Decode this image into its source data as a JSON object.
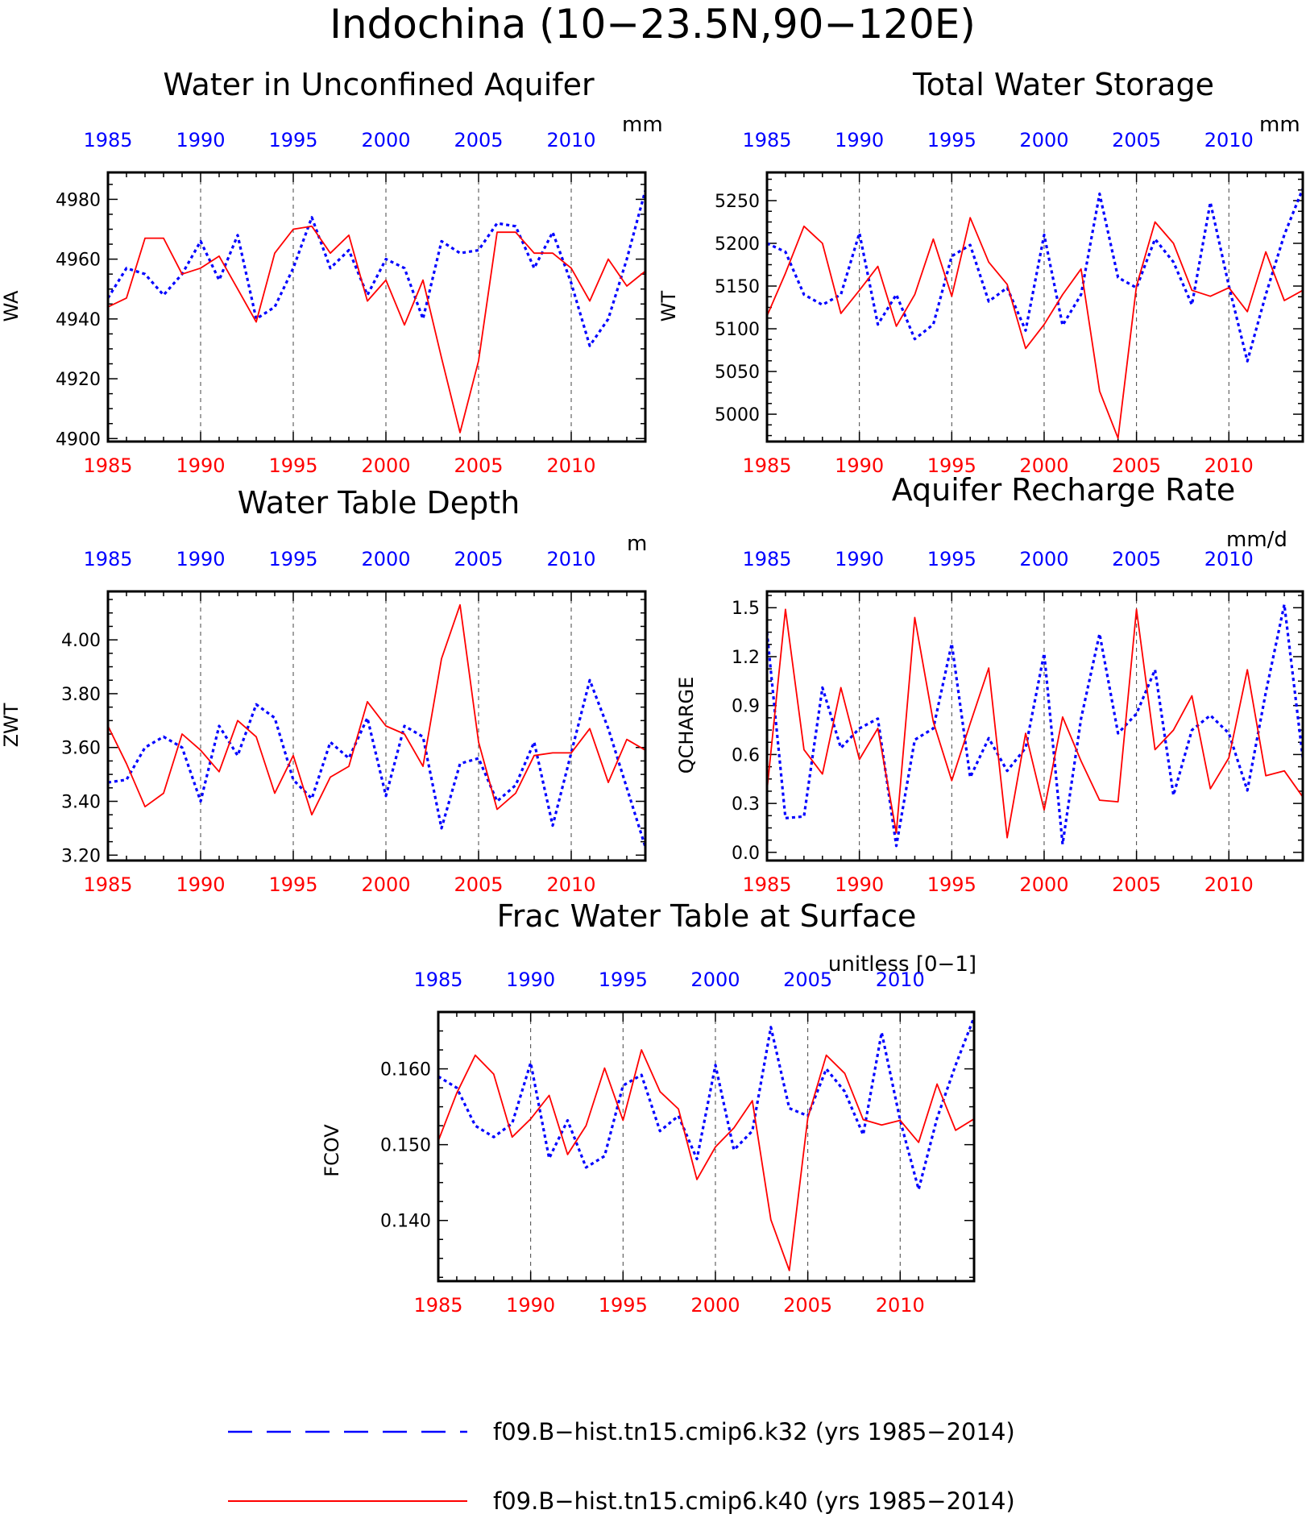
{
  "figure_title": "Indochina (10−23.5N,90−120E)",
  "colors": {
    "k32": "#0000ff",
    "k40": "#ff0000",
    "axis": "#000000",
    "grid": "#444444"
  },
  "legend": [
    {
      "label": "f09.B−hist.tn15.cmip6.k32 (yrs 1985−2014)",
      "style": "dashed",
      "color": "#0000ff"
    },
    {
      "label": "f09.B−hist.tn15.cmip6.k40 (yrs 1985−2014)",
      "style": "solid",
      "color": "#ff0000"
    }
  ],
  "chart_data": [
    {
      "type": "line",
      "title": "Water in Unconfined Aquifer",
      "units": "mm",
      "ylabel": "WA",
      "xlim": [
        1985,
        2014
      ],
      "ylim": [
        4899,
        4989
      ],
      "yticks": [
        4900,
        4920,
        4940,
        4960,
        4980
      ],
      "ytick_labels": [
        "4900",
        "4920",
        "4940",
        "4960",
        "4980"
      ],
      "xtick_labels": [
        "1985",
        "1990",
        "1995",
        "2000",
        "2005",
        "2010"
      ],
      "grid_years": [
        1990,
        1995,
        2000,
        2005,
        2010
      ],
      "x": [
        1985,
        1986,
        1987,
        1988,
        1989,
        1990,
        1991,
        1992,
        1993,
        1994,
        1995,
        1996,
        1997,
        1998,
        1999,
        2000,
        2001,
        2002,
        2003,
        2004,
        2005,
        2006,
        2007,
        2008,
        2009,
        2010,
        2011,
        2012,
        2013,
        2014
      ],
      "series": [
        {
          "name": "f09.B−hist.tn15.cmip6.k32",
          "values": [
            4947,
            4957,
            4955,
            4948,
            4955,
            4966,
            4953,
            4968,
            4940,
            4944,
            4957,
            4974,
            4957,
            4963,
            4948,
            4960,
            4957,
            4940,
            4966,
            4962,
            4963,
            4972,
            4971,
            4957,
            4969,
            4952,
            4931,
            4940,
            4960,
            4983
          ]
        },
        {
          "name": "f09.B−hist.tn15.cmip6.k40",
          "values": [
            4944,
            4947,
            4967,
            4967,
            4955,
            4957,
            4961,
            4950,
            4939,
            4962,
            4970,
            4971,
            4962,
            4968,
            4946,
            4953,
            4938,
            4953,
            4927,
            4902,
            4926,
            4969,
            4969,
            4962,
            4962,
            4957,
            4946,
            4960,
            4951,
            4956
          ]
        }
      ]
    },
    {
      "type": "line",
      "title": "Total Water Storage",
      "units": "mm",
      "ylabel": "WT",
      "xlim": [
        1985,
        2014
      ],
      "ylim": [
        4968,
        5283
      ],
      "yticks": [
        5000,
        5050,
        5100,
        5150,
        5200,
        5250
      ],
      "ytick_labels": [
        "5000",
        "5050",
        "5100",
        "5150",
        "5200",
        "5250"
      ],
      "xtick_labels": [
        "1985",
        "1990",
        "1995",
        "2000",
        "2005",
        "2010"
      ],
      "grid_years": [
        1990,
        1995,
        2000,
        2005,
        2010
      ],
      "x": [
        1985,
        1986,
        1987,
        1988,
        1989,
        1990,
        1991,
        1992,
        1993,
        1994,
        1995,
        1996,
        1997,
        1998,
        1999,
        2000,
        2001,
        2002,
        2003,
        2004,
        2005,
        2006,
        2007,
        2008,
        2009,
        2010,
        2011,
        2012,
        2013,
        2014
      ],
      "series": [
        {
          "name": "f09.B−hist.tn15.cmip6.k32",
          "values": [
            5200,
            5190,
            5140,
            5128,
            5140,
            5212,
            5105,
            5140,
            5088,
            5105,
            5185,
            5198,
            5132,
            5148,
            5098,
            5210,
            5104,
            5140,
            5258,
            5160,
            5148,
            5205,
            5178,
            5128,
            5248,
            5150,
            5062,
            5140,
            5210,
            5264
          ]
        },
        {
          "name": "f09.B−hist.tn15.cmip6.k40",
          "values": [
            5115,
            5165,
            5220,
            5200,
            5118,
            5145,
            5173,
            5103,
            5140,
            5205,
            5138,
            5230,
            5178,
            5152,
            5077,
            5105,
            5140,
            5170,
            5027,
            4972,
            5150,
            5225,
            5200,
            5145,
            5138,
            5148,
            5120,
            5190,
            5133,
            5145
          ]
        }
      ]
    },
    {
      "type": "line",
      "title": "Water Table Depth",
      "units": "m",
      "ylabel": "ZWT",
      "xlim": [
        1985,
        2014
      ],
      "ylim": [
        3.18,
        4.18
      ],
      "yticks": [
        3.2,
        3.4,
        3.6,
        3.8,
        4.0
      ],
      "ytick_labels": [
        "3.20",
        "3.40",
        "3.60",
        "3.80",
        "4.00"
      ],
      "xtick_labels": [
        "1985",
        "1990",
        "1995",
        "2000",
        "2005",
        "2010"
      ],
      "grid_years": [
        1990,
        1995,
        2000,
        2005,
        2010
      ],
      "x": [
        1985,
        1986,
        1987,
        1988,
        1989,
        1990,
        1991,
        1992,
        1993,
        1994,
        1995,
        1996,
        1997,
        1998,
        1999,
        2000,
        2001,
        2002,
        2003,
        2004,
        2005,
        2006,
        2007,
        2008,
        2009,
        2010,
        2011,
        2012,
        2013,
        2014
      ],
      "series": [
        {
          "name": "f09.B−hist.tn15.cmip6.k32",
          "values": [
            3.47,
            3.48,
            3.6,
            3.64,
            3.6,
            3.4,
            3.68,
            3.57,
            3.76,
            3.71,
            3.48,
            3.41,
            3.62,
            3.56,
            3.71,
            3.42,
            3.68,
            3.64,
            3.3,
            3.54,
            3.56,
            3.4,
            3.46,
            3.62,
            3.31,
            3.58,
            3.85,
            3.67,
            3.45,
            3.23
          ]
        },
        {
          "name": "f09.B−hist.tn15.cmip6.k40",
          "values": [
            3.68,
            3.54,
            3.38,
            3.43,
            3.65,
            3.59,
            3.51,
            3.7,
            3.64,
            3.43,
            3.57,
            3.35,
            3.49,
            3.53,
            3.77,
            3.68,
            3.65,
            3.53,
            3.93,
            4.13,
            3.62,
            3.37,
            3.43,
            3.57,
            3.58,
            3.58,
            3.67,
            3.47,
            3.63,
            3.59
          ]
        }
      ]
    },
    {
      "type": "line",
      "title": "Aquifer Recharge Rate",
      "units": "mm/d",
      "ylabel": "QCHARGE",
      "xlim": [
        1985,
        2014
      ],
      "ylim": [
        -0.05,
        1.6
      ],
      "yticks": [
        0.0,
        0.3,
        0.6,
        0.9,
        1.2,
        1.5
      ],
      "ytick_labels": [
        "0.0",
        "0.3",
        "0.6",
        "0.9",
        "1.2",
        "1.5"
      ],
      "xtick_labels": [
        "1985",
        "1990",
        "1995",
        "2000",
        "2005",
        "2010"
      ],
      "grid_years": [
        1990,
        1995,
        2000,
        2005,
        2010
      ],
      "x": [
        1985,
        1986,
        1987,
        1988,
        1989,
        1990,
        1991,
        1992,
        1993,
        1994,
        1995,
        1996,
        1997,
        1998,
        1999,
        2000,
        2001,
        2002,
        2003,
        2004,
        2005,
        2006,
        2007,
        2008,
        2009,
        2010,
        2011,
        2012,
        2013,
        2014
      ],
      "series": [
        {
          "name": "f09.B−hist.tn15.cmip6.k32",
          "values": [
            1.35,
            0.21,
            0.22,
            1.01,
            0.64,
            0.76,
            0.82,
            0.04,
            0.69,
            0.76,
            1.28,
            0.46,
            0.7,
            0.5,
            0.64,
            1.22,
            0.05,
            0.82,
            1.34,
            0.73,
            0.85,
            1.12,
            0.35,
            0.75,
            0.84,
            0.73,
            0.38,
            0.98,
            1.52,
            0.58
          ]
        },
        {
          "name": "f09.B−hist.tn15.cmip6.k40",
          "values": [
            0.38,
            1.49,
            0.63,
            0.48,
            1.01,
            0.57,
            0.76,
            0.12,
            1.44,
            0.8,
            0.44,
            0.79,
            1.13,
            0.09,
            0.73,
            0.26,
            0.83,
            0.56,
            0.32,
            0.31,
            1.49,
            0.63,
            0.75,
            0.96,
            0.39,
            0.58,
            1.12,
            0.47,
            0.5,
            0.34
          ]
        }
      ]
    },
    {
      "type": "line",
      "title": "Frac Water Table at Surface",
      "units": "unitless [0−1]",
      "ylabel": "FCOV",
      "xlim": [
        1985,
        2014
      ],
      "ylim": [
        0.132,
        0.1675
      ],
      "yticks": [
        0.14,
        0.15,
        0.16
      ],
      "ytick_labels": [
        "0.140",
        "0.150",
        "0.160"
      ],
      "xtick_labels": [
        "1985",
        "1990",
        "1995",
        "2000",
        "2005",
        "2010"
      ],
      "grid_years": [
        1990,
        1995,
        2000,
        2005,
        2010
      ],
      "x": [
        1985,
        1986,
        1987,
        1988,
        1989,
        1990,
        1991,
        1992,
        1993,
        1994,
        1995,
        1996,
        1997,
        1998,
        1999,
        2000,
        2001,
        2002,
        2003,
        2004,
        2005,
        2006,
        2007,
        2008,
        2009,
        2010,
        2011,
        2012,
        2013,
        2014
      ],
      "series": [
        {
          "name": "f09.B−hist.tn15.cmip6.k32",
          "values": [
            0.159,
            0.1575,
            0.1525,
            0.151,
            0.1528,
            0.1608,
            0.1482,
            0.1532,
            0.147,
            0.1485,
            0.1578,
            0.1592,
            0.1518,
            0.1538,
            0.1481,
            0.1605,
            0.1493,
            0.1518,
            0.1655,
            0.1548,
            0.1538,
            0.16,
            0.157,
            0.1513,
            0.1648,
            0.1532,
            0.1441,
            0.1535,
            0.1605,
            0.1668
          ]
        },
        {
          "name": "f09.B−hist.tn15.cmip6.k40",
          "values": [
            0.1505,
            0.1568,
            0.1618,
            0.1593,
            0.151,
            0.1534,
            0.1565,
            0.1487,
            0.1525,
            0.1601,
            0.1532,
            0.1625,
            0.157,
            0.1547,
            0.1454,
            0.1497,
            0.1522,
            0.1558,
            0.1401,
            0.1334,
            0.1535,
            0.1618,
            0.1594,
            0.1533,
            0.1526,
            0.1532,
            0.1503,
            0.158,
            0.1519,
            0.1534
          ]
        }
      ]
    }
  ]
}
